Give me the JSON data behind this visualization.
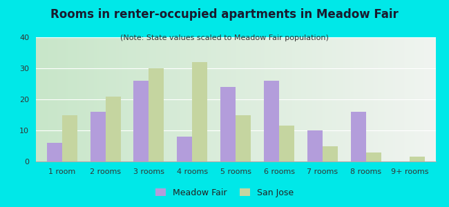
{
  "title": "Rooms in renter-occupied apartments in Meadow Fair",
  "subtitle": "(Note: State values scaled to Meadow Fair population)",
  "categories": [
    "1 room",
    "2 rooms",
    "3 rooms",
    "4 rooms",
    "5 rooms",
    "6 rooms",
    "7 rooms",
    "8 rooms",
    "9+ rooms"
  ],
  "meadow_fair": [
    6,
    16,
    26,
    8,
    24,
    26,
    10,
    16,
    0
  ],
  "san_jose": [
    15,
    21,
    30,
    32,
    15,
    11.5,
    5,
    3,
    1.5
  ],
  "meadow_fair_color": "#b39ddb",
  "san_jose_color": "#c5d5a0",
  "background_outer": "#00e8e8",
  "background_plot_left": "#b2dfdb",
  "background_plot_right": "#f5f5f0",
  "ylim": [
    0,
    40
  ],
  "yticks": [
    0,
    10,
    20,
    30,
    40
  ],
  "bar_width": 0.35,
  "title_fontsize": 12,
  "subtitle_fontsize": 8,
  "tick_fontsize": 8,
  "legend_fontsize": 9
}
